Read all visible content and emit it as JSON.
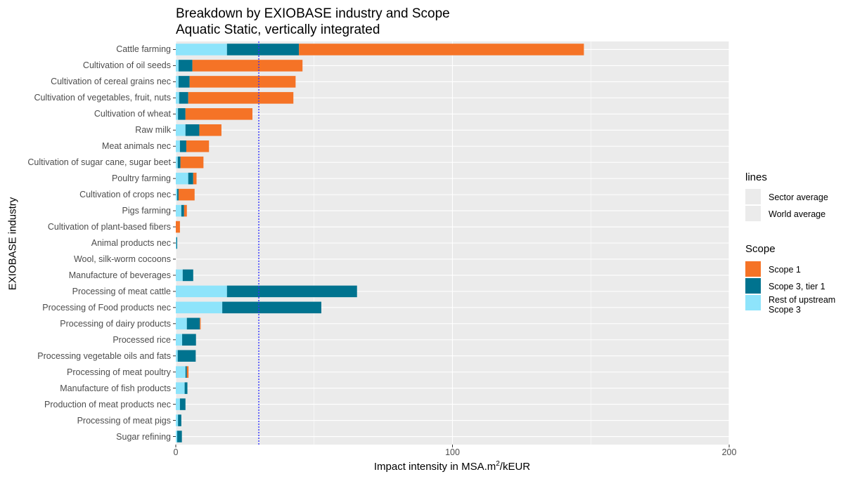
{
  "chart_data": {
    "type": "bar",
    "orientation": "horizontal",
    "stacked": true,
    "title": "Breakdown by EXIOBASE industry and Scope",
    "subtitle": "Aquatic Static, vertically integrated",
    "xlabel_prefix": "Impact intensity in MSA.m",
    "xlabel_sup": "2",
    "xlabel_suffix": "/kEUR",
    "ylabel": "EXIOBASE industry",
    "xlim": [
      0,
      200
    ],
    "x_ticks": [
      "0",
      "100",
      "200"
    ],
    "grid": true,
    "categories": [
      "Cattle farming",
      "Cultivation of oil seeds",
      "Cultivation of cereal grains nec",
      "Cultivation of vegetables, fruit, nuts",
      "Cultivation of wheat",
      "Raw milk",
      "Meat animals nec",
      "Cultivation of sugar cane, sugar beet",
      "Poultry farming",
      "Cultivation of crops nec",
      "Pigs farming",
      "Cultivation of plant-based fibers",
      "Animal products nec",
      "Wool, silk-worm cocoons",
      "Manufacture of beverages",
      "Processing of meat cattle",
      "Processing of Food products nec",
      "Processing of dairy products",
      "Processed rice",
      "Processing vegetable oils and fats",
      "Processing of meat poultry",
      "Manufacture of fish products",
      "Production of meat products nec",
      "Processing of meat pigs",
      "Sugar refining"
    ],
    "series": [
      {
        "name": "Rest of upstream Scope 3",
        "color": "#8ee4fb",
        "values": [
          18.5,
          1,
          1,
          1.2,
          0.8,
          3.5,
          1.5,
          0.7,
          4.5,
          0.5,
          2,
          0,
          0.2,
          0,
          2.5,
          18.5,
          16.8,
          4,
          2.3,
          0.7,
          3.5,
          3.2,
          1.5,
          0.8,
          0.5
        ]
      },
      {
        "name": "Scope 3, tier 1",
        "color": "#00738f",
        "values": [
          26,
          5,
          4,
          3.3,
          2.7,
          5,
          2.3,
          1,
          1.8,
          0.5,
          1,
          0,
          0.3,
          0,
          3.8,
          47,
          35.8,
          4.7,
          5,
          6.5,
          0.5,
          1,
          2,
          1.2,
          1.7
        ]
      },
      {
        "name": "Scope 1",
        "color": "#f57326",
        "values": [
          103,
          39.8,
          38.3,
          38,
          24.2,
          8,
          8.2,
          8.3,
          1.2,
          5.8,
          1,
          1.5,
          0,
          0,
          0,
          0,
          0,
          0.3,
          0,
          0,
          0.6,
          0,
          0,
          0,
          0
        ]
      }
    ],
    "reference_lines": [
      {
        "name": "Sector average",
        "color": "#f5a623",
        "style": "solid"
      },
      {
        "name": "World average",
        "color": "#3333ff",
        "style": "dotted",
        "value": 30
      }
    ],
    "legend_placement": "right",
    "legends": {
      "lines": {
        "title": "lines",
        "entries": [
          "Sector average",
          "World average"
        ]
      },
      "scope": {
        "title": "Scope",
        "entries": [
          "Scope 1",
          "Scope 3, tier 1",
          "Rest of upstream",
          "Scope 3"
        ]
      }
    }
  }
}
